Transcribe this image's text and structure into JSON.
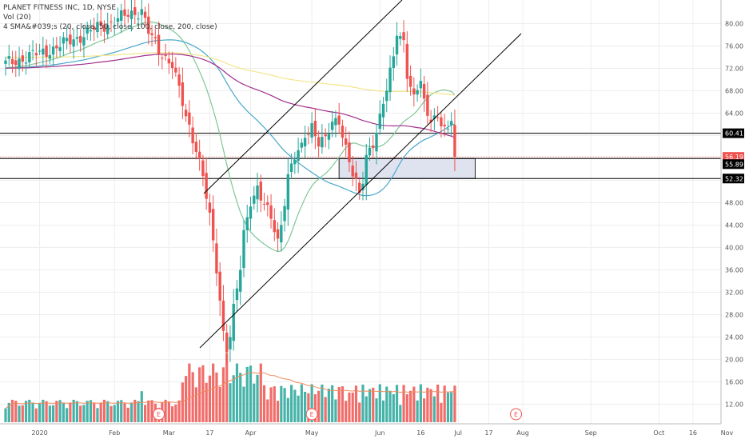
{
  "legend": {
    "symbol_line": "PLANET FITNESS INC, 1D, NYSE",
    "volume_line": "Vol (20)",
    "sma_line": "4 SMA&#039;s (20, close, 50, close, 100, close, 200, close)"
  },
  "chart_data": {
    "type": "candlestick",
    "title": "PLANET FITNESS INC, 1D, NYSE",
    "price_axis": {
      "ticks": [
        12.0,
        16.0,
        20.0,
        24.0,
        28.0,
        32.0,
        36.0,
        40.0,
        44.0,
        48.0,
        52.0,
        56.0,
        60.0,
        64.0,
        68.0,
        72.0,
        76.0,
        80.0
      ],
      "labels": [
        "12.00",
        "16.00",
        "20.00",
        "24.00",
        "28.00",
        "32.00",
        "36.00",
        "40.00",
        "44.00",
        "48.00",
        "52.00",
        "56.00",
        "60.00",
        "64.00",
        "68.00",
        "72.00",
        "76.00",
        "80.00"
      ],
      "range": [
        10.0,
        83.6
      ]
    },
    "time_axis": {
      "labels": [
        "2020",
        "Feb",
        "Mar",
        "17",
        "Apr",
        "May",
        "Jun",
        "16",
        "Jul",
        "17",
        "Aug",
        "Sep",
        "Oct",
        "16",
        "Nov"
      ]
    },
    "candles": [],
    "price_labels": [
      {
        "value": 60.41,
        "text": "60.41",
        "color": "#000000"
      },
      {
        "value": 56.19,
        "text": "56.19",
        "color": "#ef5350"
      },
      {
        "value": 55.89,
        "text": "55.89",
        "color": "#000000"
      },
      {
        "value": 52.32,
        "text": "52.32",
        "color": "#000000"
      }
    ],
    "horizontal_lines": [
      60.41,
      55.89,
      52.32
    ],
    "zone": {
      "top": 55.89,
      "bottom": 52.32
    },
    "earnings_markers": [
      "E",
      "E",
      "E"
    ],
    "sma_series": [
      {
        "name": "SMA 20",
        "color": "#7fc797"
      },
      {
        "name": "SMA 50",
        "color": "#4aa8c9"
      },
      {
        "name": "SMA 100",
        "color": "#a32e8c"
      },
      {
        "name": "SMA 200",
        "color": "#f2e68a"
      }
    ],
    "colors": {
      "up": "#26a69a",
      "down": "#ef5350",
      "grid": "#eeeeee",
      "axis": "#bbbbbb",
      "zone": "#dfe3f0"
    }
  }
}
